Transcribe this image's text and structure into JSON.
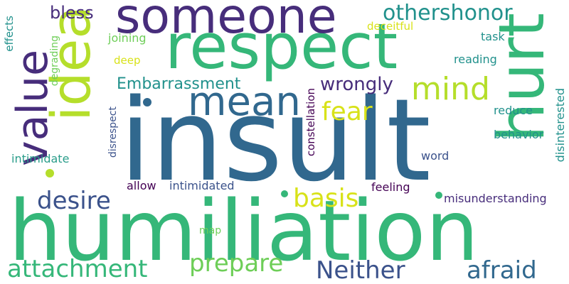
{
  "cloud": {
    "background": "#ffffff",
    "palette": [
      "#440154",
      "#472d7b",
      "#3b528b",
      "#31688e",
      "#21918c",
      "#2a9d8a",
      "#35b779",
      "#6ece58",
      "#b5de2b",
      "#d8e219"
    ],
    "words": {
      "insult": "insult",
      "humiliation": "humiliation",
      "respect": "respect",
      "someone": "someone",
      "hurt": "hurt",
      "idea": "idea",
      "value": "value",
      "mean": "mean",
      "mind": "mind",
      "fear": "fear",
      "othershonor": "othershonor",
      "bless": "bless",
      "embarrassment": "Embarrassment",
      "wrongly": "wrongly",
      "desire": "desire",
      "basis": "basis",
      "attachment": "attachment",
      "prepare": "prepare",
      "neither": "Neither",
      "afraid": "afraid",
      "joining": "joining",
      "deceitful": "deceitful",
      "task": "task",
      "reading": "reading",
      "deep": "deep",
      "reduce": "reduce",
      "behavior": "behavior",
      "word": "word",
      "intimidate": "intimidate",
      "allow": "allow",
      "intimidated": "intimidated",
      "feeling": "feeling",
      "misunderstanding": "misunderstanding",
      "map": "map",
      "effects": "effects",
      "degrading": "degrading",
      "disrespect": "disrespect",
      "constellation": "constellation",
      "disinterested": "disinterested"
    }
  }
}
